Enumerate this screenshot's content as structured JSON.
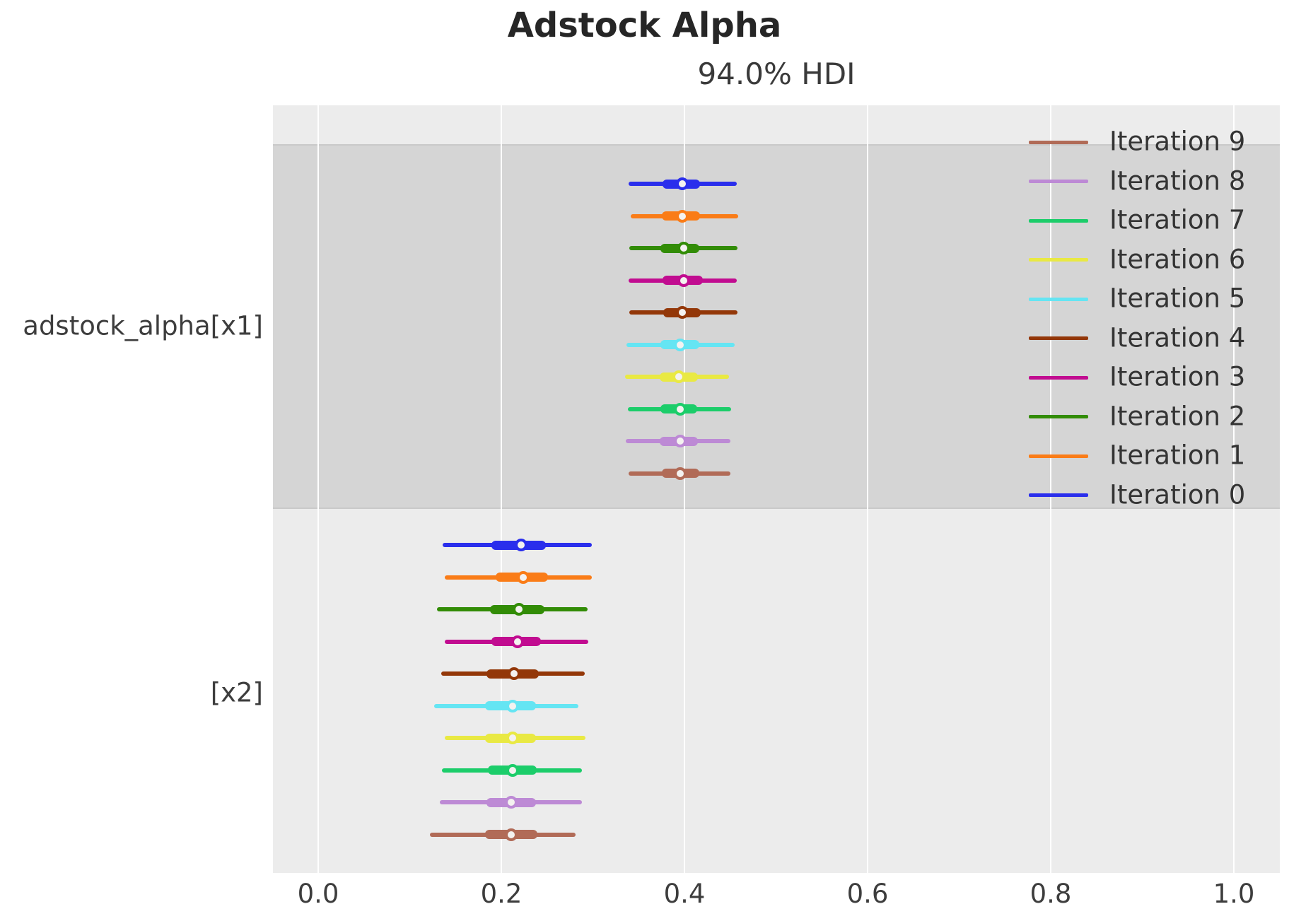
{
  "figure": {
    "title": "Adstock Alpha",
    "axes_title": "94.0% HDI"
  },
  "chart_data": {
    "type": "forest",
    "title": "Adstock Alpha",
    "subtitle": "94.0% HDI",
    "interval_label": "94.0% HDI",
    "xlim": [
      -0.05,
      1.05
    ],
    "xticks": [
      0.0,
      0.2,
      0.4,
      0.6,
      0.8,
      1.0
    ],
    "xtick_labels": [
      "0.0",
      "0.2",
      "0.4",
      "0.6",
      "0.8",
      "1.0"
    ],
    "grid": "vertical-white-on-gray",
    "legend_position": "upper-right-inside",
    "groups": [
      {
        "label": "adstock_alpha[x1]",
        "shaded": true,
        "rows": [
          {
            "name": "Iteration 0",
            "color": "#2a2eec",
            "hdi": [
              0.339,
              0.457
            ],
            "quartile": [
              0.376,
              0.417
            ],
            "median": 0.398
          },
          {
            "name": "Iteration 1",
            "color": "#fa7c17",
            "hdi": [
              0.341,
              0.459
            ],
            "quartile": [
              0.375,
              0.417
            ],
            "median": 0.398
          },
          {
            "name": "Iteration 2",
            "color": "#328c06",
            "hdi": [
              0.34,
              0.458
            ],
            "quartile": [
              0.374,
              0.416
            ],
            "median": 0.399
          },
          {
            "name": "Iteration 3",
            "color": "#c10c90",
            "hdi": [
              0.339,
              0.457
            ],
            "quartile": [
              0.376,
              0.42
            ],
            "median": 0.399
          },
          {
            "name": "Iteration 4",
            "color": "#933708",
            "hdi": [
              0.34,
              0.458
            ],
            "quartile": [
              0.377,
              0.418
            ],
            "median": 0.398
          },
          {
            "name": "Iteration 5",
            "color": "#65e5f3",
            "hdi": [
              0.337,
              0.455
            ],
            "quartile": [
              0.374,
              0.416
            ],
            "median": 0.395
          },
          {
            "name": "Iteration 6",
            "color": "#e9e943",
            "hdi": [
              0.335,
              0.449
            ],
            "quartile": [
              0.373,
              0.415
            ],
            "median": 0.394
          },
          {
            "name": "Iteration 7",
            "color": "#1ccd6a",
            "hdi": [
              0.338,
              0.451
            ],
            "quartile": [
              0.374,
              0.414
            ],
            "median": 0.395
          },
          {
            "name": "Iteration 8",
            "color": "#bd8ad5",
            "hdi": [
              0.336,
              0.45
            ],
            "quartile": [
              0.373,
              0.415
            ],
            "median": 0.395
          },
          {
            "name": "Iteration 9",
            "color": "#b16b57",
            "hdi": [
              0.339,
              0.45
            ],
            "quartile": [
              0.375,
              0.416
            ],
            "median": 0.395
          }
        ]
      },
      {
        "label": "[x2]",
        "shaded": false,
        "rows": [
          {
            "name": "Iteration 0",
            "color": "#2a2eec",
            "hdi": [
              0.136,
              0.299
            ],
            "quartile": [
              0.189,
              0.249
            ],
            "median": 0.222
          },
          {
            "name": "Iteration 1",
            "color": "#fa7c17",
            "hdi": [
              0.138,
              0.299
            ],
            "quartile": [
              0.194,
              0.251
            ],
            "median": 0.224
          },
          {
            "name": "Iteration 2",
            "color": "#328c06",
            "hdi": [
              0.13,
              0.294
            ],
            "quartile": [
              0.188,
              0.247
            ],
            "median": 0.219
          },
          {
            "name": "Iteration 3",
            "color": "#c10c90",
            "hdi": [
              0.138,
              0.295
            ],
            "quartile": [
              0.189,
              0.243
            ],
            "median": 0.218
          },
          {
            "name": "Iteration 4",
            "color": "#933708",
            "hdi": [
              0.134,
              0.291
            ],
            "quartile": [
              0.184,
              0.241
            ],
            "median": 0.214
          },
          {
            "name": "Iteration 5",
            "color": "#65e5f3",
            "hdi": [
              0.127,
              0.284
            ],
            "quartile": [
              0.182,
              0.238
            ],
            "median": 0.212
          },
          {
            "name": "Iteration 6",
            "color": "#e9e943",
            "hdi": [
              0.138,
              0.292
            ],
            "quartile": [
              0.182,
              0.238
            ],
            "median": 0.212
          },
          {
            "name": "Iteration 7",
            "color": "#1ccd6a",
            "hdi": [
              0.135,
              0.288
            ],
            "quartile": [
              0.185,
              0.239
            ],
            "median": 0.212
          },
          {
            "name": "Iteration 8",
            "color": "#bd8ad5",
            "hdi": [
              0.133,
              0.288
            ],
            "quartile": [
              0.184,
              0.238
            ],
            "median": 0.211
          },
          {
            "name": "Iteration 9",
            "color": "#b16b57",
            "hdi": [
              0.122,
              0.281
            ],
            "quartile": [
              0.182,
              0.239
            ],
            "median": 0.211
          }
        ]
      }
    ],
    "legend": [
      {
        "label": "Iteration 9",
        "color": "#b16b57"
      },
      {
        "label": "Iteration 8",
        "color": "#bd8ad5"
      },
      {
        "label": "Iteration 7",
        "color": "#1ccd6a"
      },
      {
        "label": "Iteration 6",
        "color": "#e9e943"
      },
      {
        "label": "Iteration 5",
        "color": "#65e5f3"
      },
      {
        "label": "Iteration 4",
        "color": "#933708"
      },
      {
        "label": "Iteration 3",
        "color": "#c10c90"
      },
      {
        "label": "Iteration 2",
        "color": "#328c06"
      },
      {
        "label": "Iteration 1",
        "color": "#fa7c17"
      },
      {
        "label": "Iteration 0",
        "color": "#2a2eec"
      }
    ],
    "palette": {
      "plot_background": "#ececec",
      "band": "#d5d5d5",
      "gridline": "#ffffff",
      "title_text": "#262626",
      "tick_text": "#3d3d3d"
    }
  }
}
